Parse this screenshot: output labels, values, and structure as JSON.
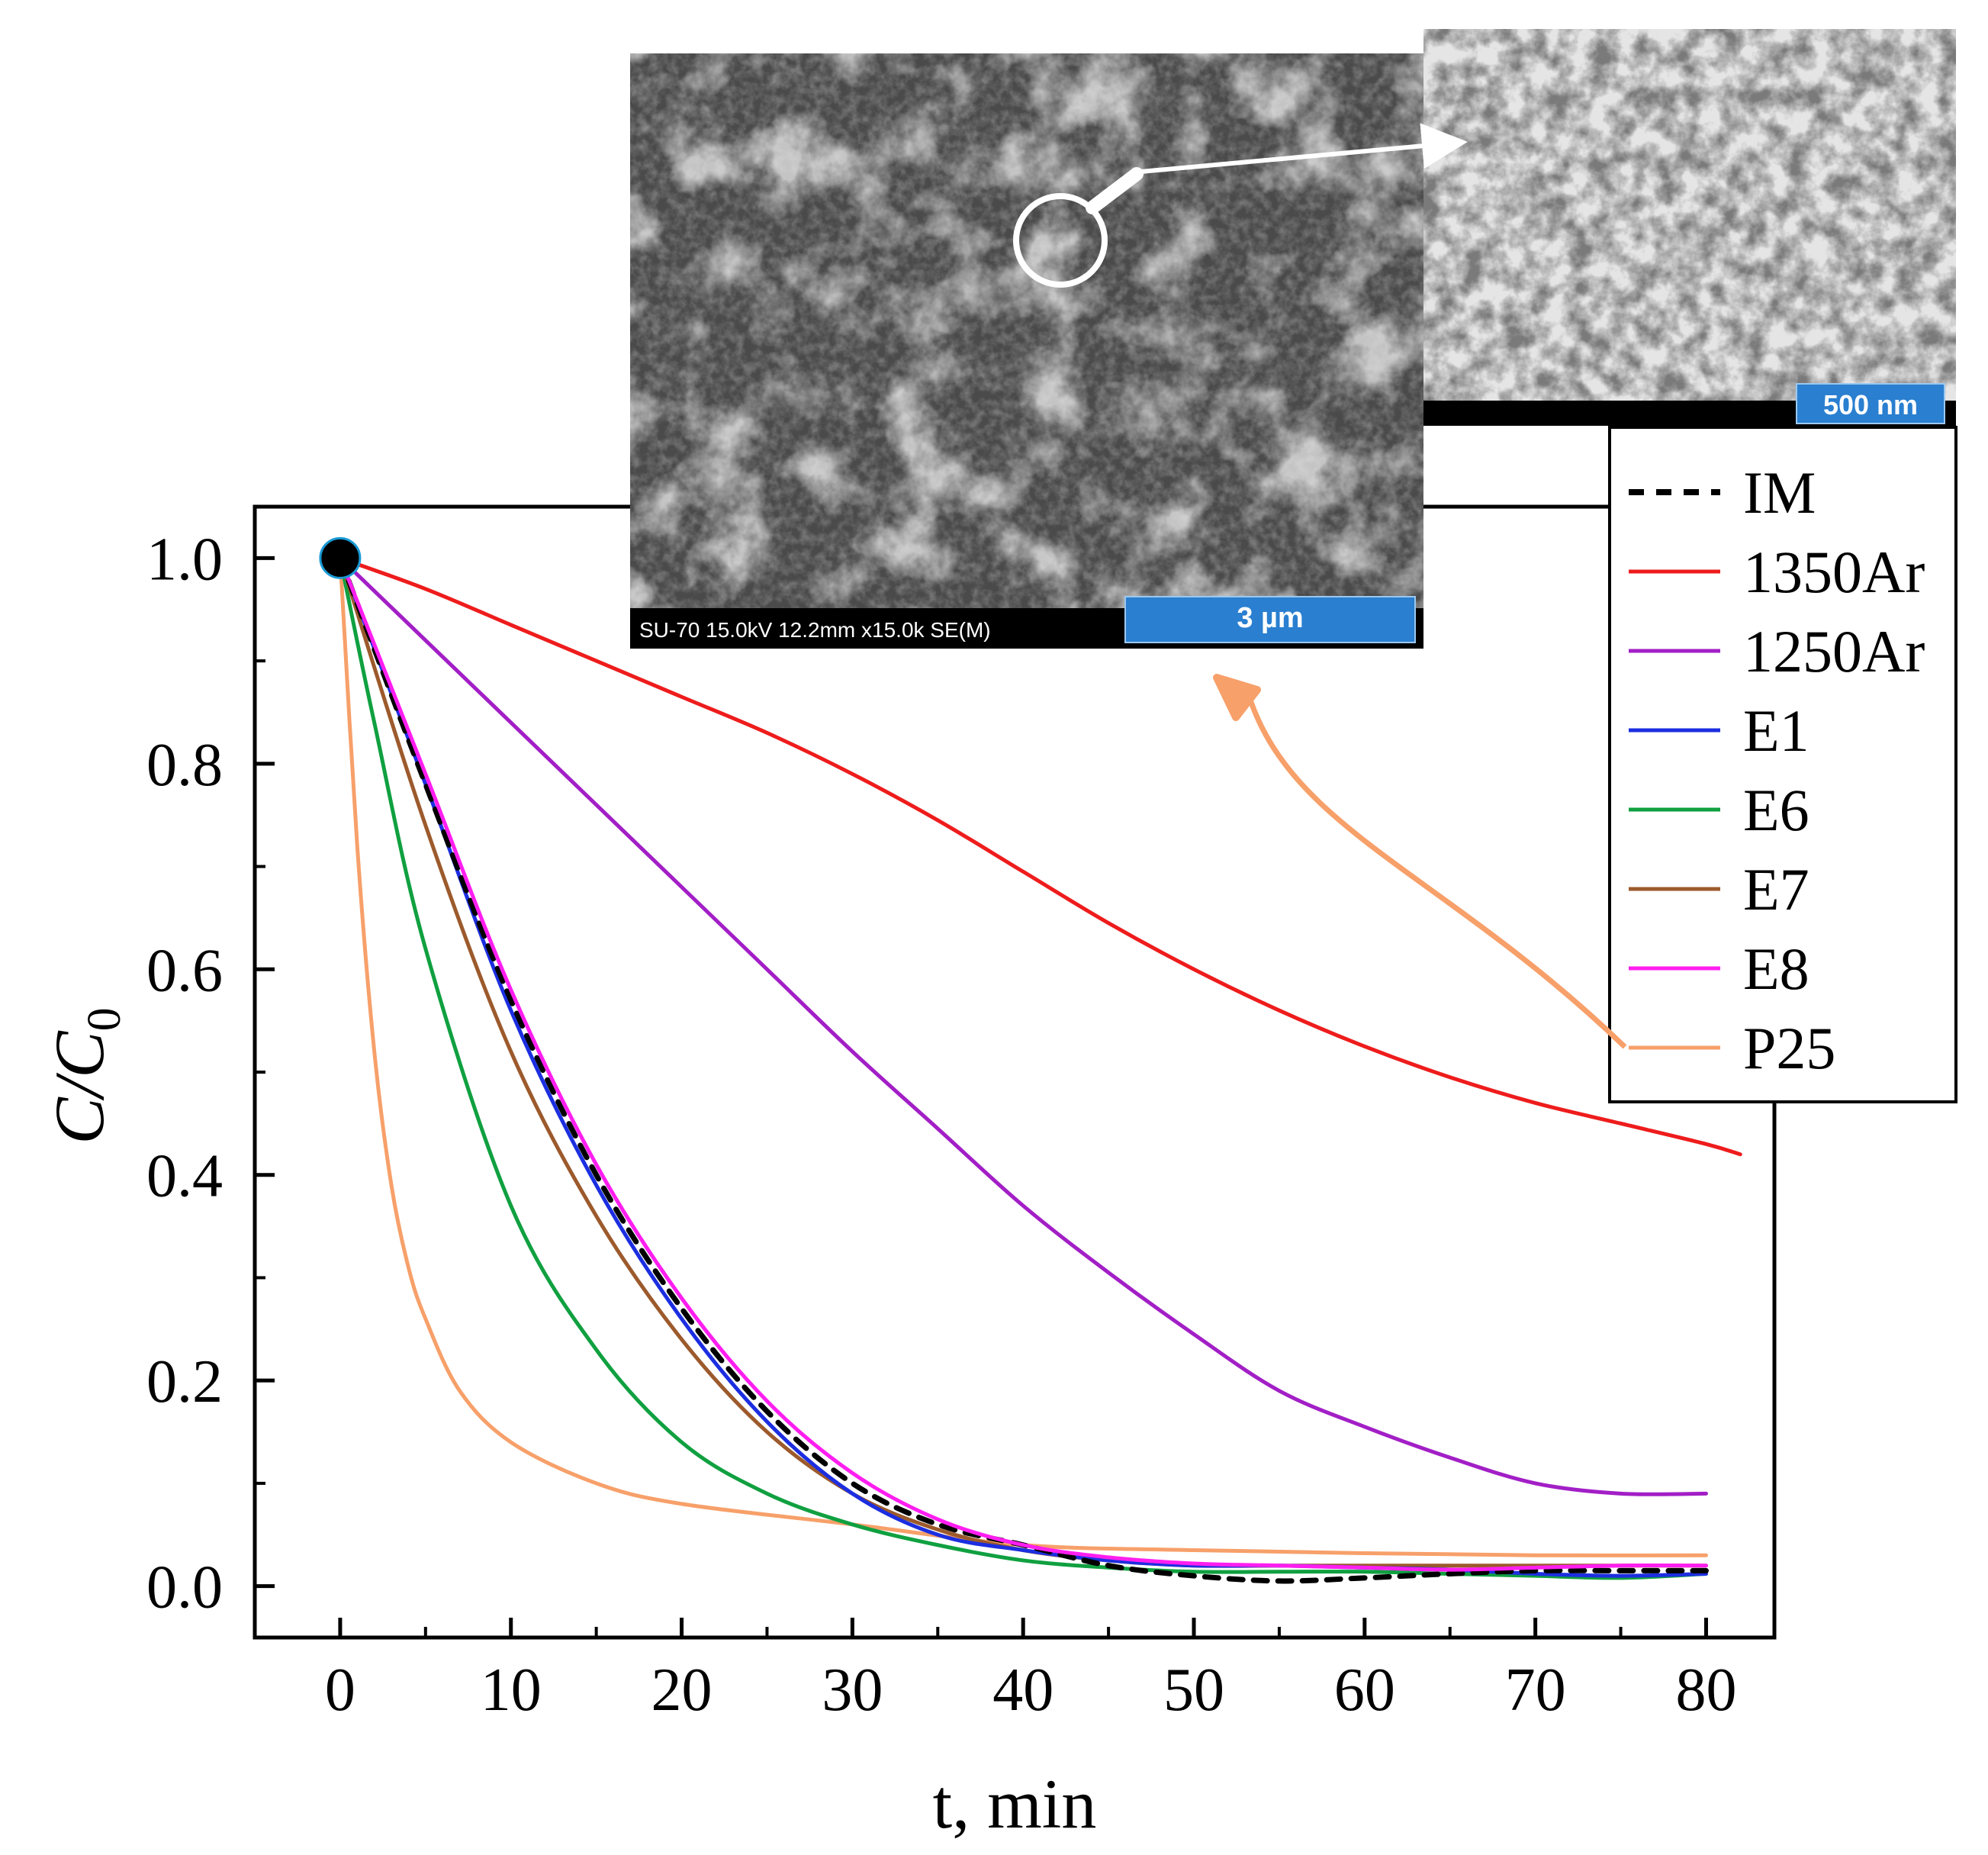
{
  "chart_data": {
    "type": "line",
    "xlabel": "t, min",
    "ylabel_main": "C/C",
    "ylabel_sub": "0",
    "xlim": [
      -5,
      84
    ],
    "ylim": [
      -0.05,
      1.05
    ],
    "xticks": [
      0,
      10,
      20,
      30,
      40,
      50,
      60,
      70,
      80
    ],
    "yticks": [
      0.0,
      0.2,
      0.4,
      0.6,
      0.8,
      1.0
    ],
    "xtick_labels": [
      "0",
      "10",
      "20",
      "30",
      "40",
      "50",
      "60",
      "70",
      "80"
    ],
    "ytick_labels": [
      "0.0",
      "0.2",
      "0.4",
      "0.6",
      "0.8",
      "1.0"
    ],
    "start_marker": {
      "x": 0,
      "y": 1.0
    },
    "legend_position": "top-right",
    "series": [
      {
        "name": "IM",
        "color": "#000000",
        "dashed": true,
        "x": [
          0,
          5,
          10,
          15,
          20,
          25,
          30,
          35,
          40,
          45,
          50,
          55,
          60,
          65,
          70,
          75,
          80
        ],
        "y": [
          1.0,
          0.78,
          0.57,
          0.4,
          0.27,
          0.17,
          0.1,
          0.06,
          0.04,
          0.02,
          0.01,
          0.005,
          0.008,
          0.012,
          0.015,
          0.015,
          0.015
        ]
      },
      {
        "name": "1350Ar",
        "color": "#ee1c1c",
        "dashed": false,
        "x": [
          0,
          5,
          10,
          15,
          20,
          25,
          30,
          35,
          40,
          45,
          50,
          55,
          60,
          65,
          70,
          75,
          80,
          82
        ],
        "y": [
          1.0,
          0.97,
          0.935,
          0.9,
          0.865,
          0.83,
          0.79,
          0.745,
          0.695,
          0.645,
          0.6,
          0.56,
          0.525,
          0.495,
          0.47,
          0.45,
          0.43,
          0.42
        ]
      },
      {
        "name": "1250Ar",
        "color": "#a21fc6",
        "dashed": false,
        "x": [
          0,
          5,
          10,
          15,
          20,
          25,
          30,
          35,
          40,
          45,
          50,
          55,
          60,
          65,
          70,
          75,
          80
        ],
        "y": [
          1.0,
          0.92,
          0.84,
          0.76,
          0.68,
          0.6,
          0.52,
          0.445,
          0.37,
          0.305,
          0.245,
          0.19,
          0.155,
          0.125,
          0.1,
          0.09,
          0.09
        ]
      },
      {
        "name": "E1",
        "color": "#1c2ee0",
        "dashed": false,
        "x": [
          0,
          5,
          10,
          15,
          20,
          25,
          30,
          35,
          40,
          45,
          50,
          55,
          60,
          65,
          70,
          75,
          80
        ],
        "y": [
          1.0,
          0.78,
          0.56,
          0.39,
          0.26,
          0.16,
          0.09,
          0.05,
          0.035,
          0.025,
          0.02,
          0.02,
          0.018,
          0.016,
          0.012,
          0.01,
          0.012
        ]
      },
      {
        "name": "E6",
        "color": "#10a040",
        "dashed": false,
        "x": [
          0,
          2,
          5,
          10,
          15,
          20,
          25,
          30,
          35,
          40,
          45,
          50,
          55,
          60,
          65,
          70,
          75,
          80
        ],
        "y": [
          1.0,
          0.84,
          0.62,
          0.37,
          0.23,
          0.14,
          0.09,
          0.06,
          0.04,
          0.025,
          0.018,
          0.014,
          0.014,
          0.014,
          0.012,
          0.01,
          0.008,
          0.012
        ]
      },
      {
        "name": "E7",
        "color": "#9c5a2c",
        "dashed": false,
        "x": [
          0,
          5,
          10,
          15,
          20,
          25,
          30,
          35,
          40,
          45,
          50,
          55,
          60,
          65,
          70,
          75,
          80
        ],
        "y": [
          1.0,
          0.74,
          0.52,
          0.36,
          0.24,
          0.15,
          0.09,
          0.055,
          0.035,
          0.025,
          0.02,
          0.02,
          0.02,
          0.02,
          0.02,
          0.02,
          0.02
        ]
      },
      {
        "name": "E8",
        "color": "#ff1ef0",
        "dashed": false,
        "x": [
          0,
          5,
          10,
          15,
          20,
          25,
          30,
          35,
          40,
          45,
          50,
          55,
          60,
          65,
          70,
          75,
          80
        ],
        "y": [
          1.0,
          0.79,
          0.58,
          0.41,
          0.28,
          0.18,
          0.11,
          0.065,
          0.04,
          0.028,
          0.022,
          0.02,
          0.018,
          0.016,
          0.018,
          0.02,
          0.02
        ]
      },
      {
        "name": "P25",
        "color": "#f7a06a",
        "dashed": false,
        "x": [
          0,
          1,
          2,
          3,
          4,
          5,
          7,
          10,
          15,
          20,
          30,
          40,
          50,
          60,
          70,
          80
        ],
        "y": [
          1.0,
          0.72,
          0.52,
          0.39,
          0.31,
          0.26,
          0.19,
          0.14,
          0.1,
          0.08,
          0.06,
          0.04,
          0.035,
          0.032,
          0.03,
          0.03
        ]
      }
    ]
  },
  "insets": {
    "sem_main_caption": "SU-70 15.0kV 12.2mm x15.0k SE(M)",
    "sem_main_scale": "3 µm",
    "sem_zoom_scale": "500 nm"
  },
  "colors": {
    "scale_bar": "#2a7fd0",
    "arrow_orange": "#f7a06a"
  }
}
